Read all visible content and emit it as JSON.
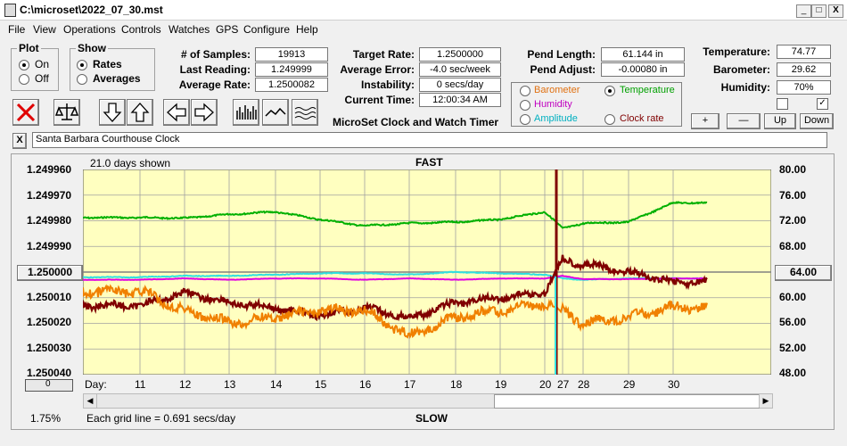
{
  "window": {
    "title": "C:\\microset\\2022_07_30.mst",
    "min_glyph": "_",
    "max_glyph": "□",
    "close_glyph": "X"
  },
  "menu": [
    "File",
    "View",
    "Operations",
    "Controls",
    "Watches",
    "GPS",
    "Configure",
    "Help"
  ],
  "plot_group": {
    "title": "Plot",
    "options": [
      "On",
      "Off"
    ],
    "selected": "On"
  },
  "show_group": {
    "title": "Show",
    "options": [
      "Rates",
      "Averages"
    ],
    "selected": "Rates"
  },
  "stats": {
    "samples_label": "# of Samples:",
    "samples": "19913",
    "last_label": "Last Reading:",
    "last": "1.249999",
    "avg_rate_label": "Average Rate:",
    "avg_rate": "1.2500082",
    "target_label": "Target Rate:",
    "target": "1.2500000",
    "avg_err_label": "Average Error:",
    "avg_err": "-4.0 sec/week",
    "instab_label": "Instability:",
    "instab": "0 secs/day",
    "time_label": "Current Time:",
    "time": "12:00:34 AM",
    "pend_len_label": "Pend Length:",
    "pend_len": "61.144 in",
    "pend_adj_label": "Pend Adjust:",
    "pend_adj": "-0.00080 in",
    "temp_label": "Temperature:",
    "temp": "74.77",
    "baro_label": "Barometer:",
    "baro": "29.62",
    "hum_label": "Humidity:",
    "hum": "70%"
  },
  "app_caption": "MicroSet Clock and Watch Timer",
  "channel_options": [
    {
      "label": "Barometer",
      "color": "#e07010",
      "selected": false
    },
    {
      "label": "Temperature",
      "color": "#00a000",
      "selected": true
    },
    {
      "label": "Humidity",
      "color": "#c000c0",
      "selected": false
    },
    {
      "label": "Amplitude",
      "color": "#00b0c0",
      "selected": false
    },
    {
      "label": "Clock rate",
      "color": "#800000",
      "selected": false
    }
  ],
  "scale_buttons": {
    "plus": "+",
    "minus": "—",
    "up": "Up",
    "down": "Down"
  },
  "checkboxes": [
    false,
    true
  ],
  "clock_name": "Santa Barbara Courthouse Clock",
  "clear_glyph": "X",
  "plot": {
    "days_shown": "21.0 days shown",
    "top_label": "FAST",
    "bottom_label": "SLOW",
    "grid_note": "Each grid line = 0.691 secs/day",
    "percent": "1.75%",
    "day_label": "Day:",
    "left_center_button": "1.250000",
    "right_center_button": "64.00",
    "slider_label": "0",
    "left_ticks": [
      "1.249960",
      "1.249970",
      "1.249980",
      "1.249990",
      "1.250000",
      "1.250010",
      "1.250020",
      "1.250030",
      "1.250040"
    ],
    "right_ticks": [
      "80.00",
      "76.00",
      "72.00",
      "68.00",
      "64.00",
      "60.00",
      "56.00",
      "52.00",
      "48.00"
    ]
  },
  "chart_data": {
    "type": "line",
    "x_ticks": [
      "11",
      "12",
      "13",
      "14",
      "15",
      "16",
      "17",
      "18",
      "19",
      "20",
      "27",
      "28",
      "29",
      "30"
    ],
    "left_axis": {
      "range": [
        1.24996,
        1.25004
      ],
      "inverted": true
    },
    "right_axis": {
      "range": [
        48,
        80
      ]
    },
    "grid": true,
    "series": [
      {
        "name": "Temperature",
        "color": "#00b000",
        "axis": "right",
        "values": [
          72.5,
          72.4,
          73.0,
          73.4,
          72.2,
          71.2,
          71.6,
          71.8,
          72.2,
          73.4,
          70.8,
          71.6,
          71.8,
          74.8
        ]
      },
      {
        "name": "Amplitude",
        "color": "#30e0e0",
        "axis": "right",
        "values": [
          63.2,
          63.4,
          63.4,
          63.6,
          63.8,
          63.8,
          63.6,
          64.0,
          63.8,
          63.6,
          63.0,
          62.8,
          63.0,
          63.0
        ]
      },
      {
        "name": "Humidity",
        "color": "#e000e0",
        "axis": "right",
        "values": [
          62.8,
          63.0,
          62.8,
          63.0,
          63.0,
          62.8,
          63.0,
          62.8,
          63.0,
          63.0,
          63.4,
          62.9,
          62.9,
          63.0
        ]
      },
      {
        "name": "Clock rate",
        "color": "#800000",
        "axis": "left",
        "values": [
          1.250013,
          1.250008,
          1.250012,
          1.250014,
          1.250017,
          1.250014,
          1.250018,
          1.250012,
          1.25001,
          1.250008,
          1.249995,
          1.249997,
          1.25,
          1.250004
        ]
      },
      {
        "name": "Barometer",
        "color": "#f08000",
        "axis": "right",
        "values": [
          61.0,
          58.0,
          56.0,
          57.0,
          58.0,
          58.0,
          54.0,
          57.0,
          58.0,
          59.0,
          58.0,
          56.0,
          57.0,
          58.5
        ]
      }
    ]
  }
}
